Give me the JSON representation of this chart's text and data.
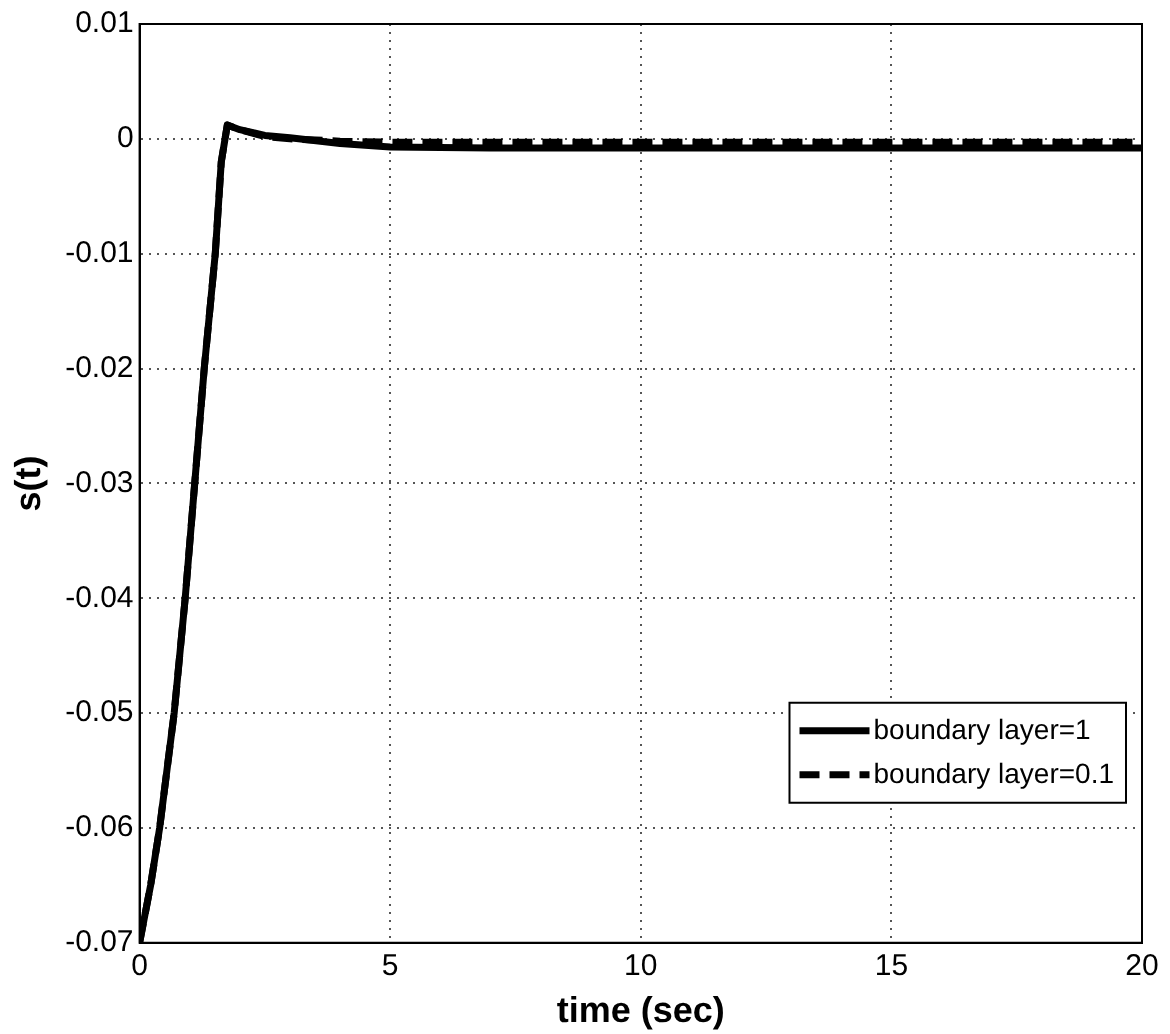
{
  "chart_data": {
    "type": "line",
    "xlabel": "time (sec)",
    "ylabel": "s(t)",
    "xlim": [
      0,
      20
    ],
    "xticks": [
      0,
      5,
      10,
      15,
      20
    ],
    "ylim": [
      -0.07,
      0.01
    ],
    "yticks": [
      -0.07,
      -0.06,
      -0.05,
      -0.04,
      -0.03,
      -0.02,
      -0.01,
      0,
      0.01
    ],
    "grid": true,
    "legend": "bottom right",
    "marker": "none",
    "series": [
      {
        "name": "boundary layer=1",
        "color": "#000000",
        "line_style": "solid",
        "x": [
          0,
          0.22,
          0.4,
          0.69,
          0.91,
          1.1,
          1.29,
          1.51,
          1.63,
          1.75,
          2,
          2.5,
          3,
          4,
          5,
          7,
          10,
          15,
          20
        ],
        "values": [
          -0.07,
          -0.065,
          -0.06,
          -0.05,
          -0.04,
          -0.03,
          -0.02,
          -0.01,
          -0.002,
          0.0012,
          0.0008,
          0.0003,
          0.0001,
          -0.0004,
          -0.0007,
          -0.0008,
          -0.0008,
          -0.0008,
          -0.0008
        ]
      },
      {
        "name": "boundary layer=0.1",
        "color": "#000000",
        "line_style": "dashed",
        "x": [
          0,
          0.22,
          0.4,
          0.69,
          0.91,
          1.1,
          1.29,
          1.51,
          1.63,
          1.75,
          2,
          2.5,
          3,
          4,
          5,
          7,
          10,
          15,
          20
        ],
        "values": [
          -0.07,
          -0.065,
          -0.06,
          -0.05,
          -0.04,
          -0.03,
          -0.02,
          -0.01,
          -0.002,
          0.0012,
          0.0008,
          0.0002,
          0,
          -0.0002,
          -0.0003,
          -0.0003,
          -0.0003,
          -0.0003,
          -0.0003
        ]
      }
    ]
  }
}
